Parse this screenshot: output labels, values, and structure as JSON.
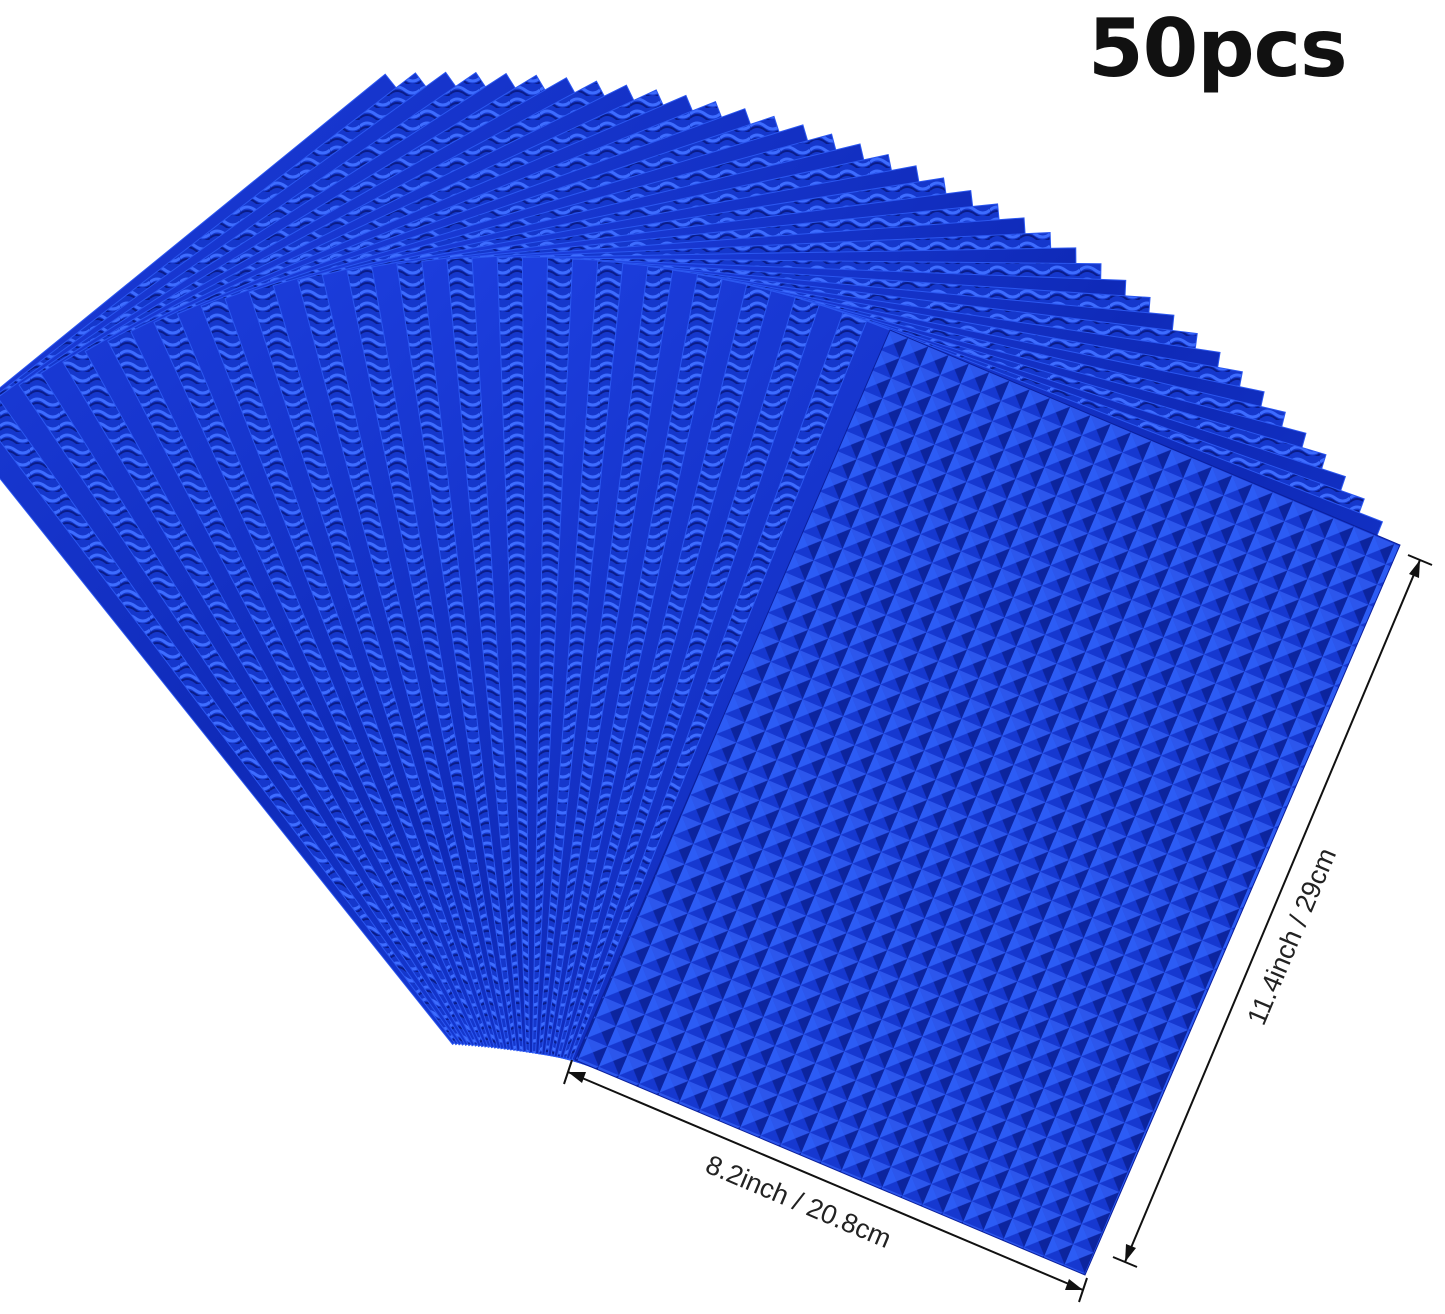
{
  "quantity_label": "50pcs",
  "width_label": "8.2inch / 20.8cm",
  "height_label": "11.4inch / 29cm",
  "colors": {
    "sheet": "#1a3fd6",
    "sheet_dark": "#0a1f9a",
    "sheet_light": "#4f7bff",
    "text": "#111111"
  }
}
